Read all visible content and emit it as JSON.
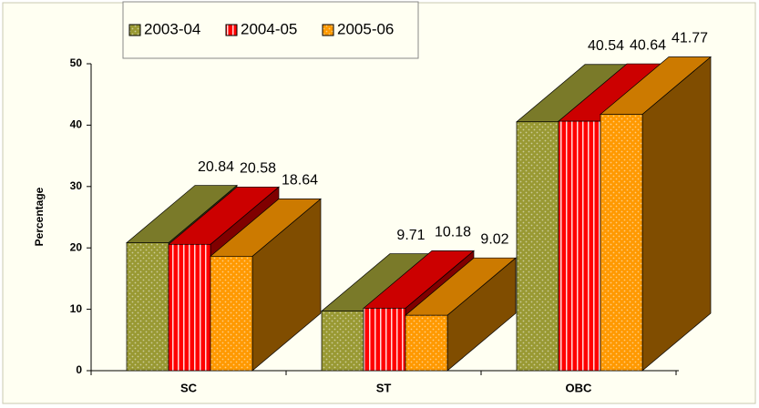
{
  "chart_data": {
    "type": "bar3d",
    "y_label": "Percentage",
    "categories": [
      "SC",
      "ST",
      "OBC"
    ],
    "series": [
      {
        "name": "2003-04",
        "color": "#999933",
        "pattern": "dots",
        "values": [
          20.84,
          9.71,
          40.54
        ]
      },
      {
        "name": "2004-05",
        "color": "#ff0000",
        "pattern": "stripes",
        "values": [
          20.58,
          10.18,
          40.64
        ]
      },
      {
        "name": "2005-06",
        "color": "#ff9900",
        "pattern": "dots",
        "values": [
          18.64,
          9.02,
          41.77
        ]
      }
    ],
    "ylim": [
      0,
      50
    ],
    "yticks": [
      0,
      10,
      20,
      30,
      40,
      50
    ],
    "legend": "top",
    "grid": false
  }
}
